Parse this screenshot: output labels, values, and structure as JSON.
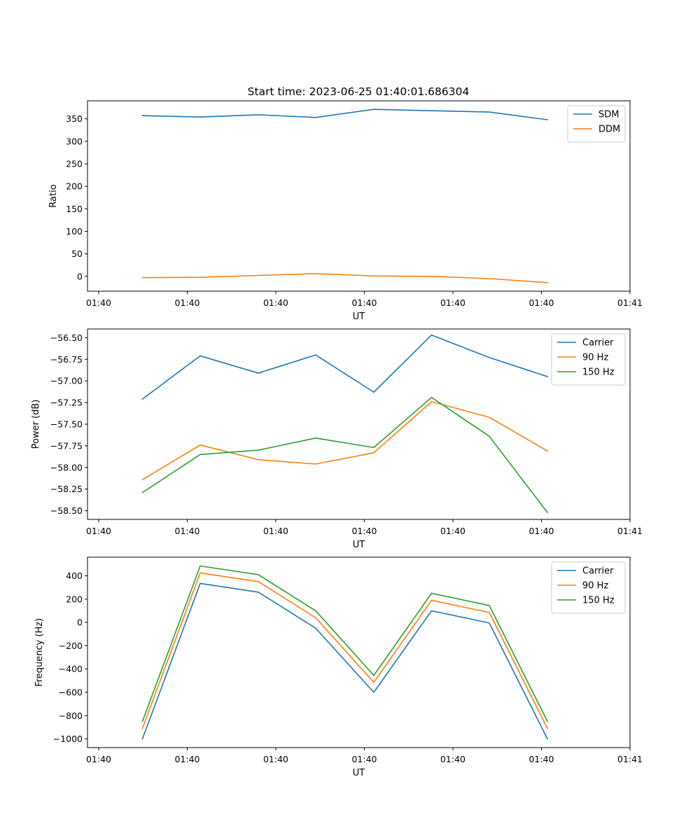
{
  "title": "Start time: 2023-06-25 01:40:01.686304",
  "colors": {
    "blue": "#1f77b4",
    "orange": "#ff7f0e",
    "green": "#2ca02c"
  },
  "chart_data": [
    {
      "type": "line",
      "xlabel": "UT",
      "ylabel": "Ratio",
      "x_tick_labels": [
        "01:40",
        "01:40",
        "01:40",
        "01:40",
        "01:40",
        "01:40",
        "01:40"
      ],
      "x_tick_end_label": "01:41",
      "ylim": [
        -33,
        390
      ],
      "yticks": [
        0,
        50,
        100,
        150,
        200,
        250,
        300,
        350
      ],
      "ytick_labels": [
        "0",
        "50",
        "100",
        "150",
        "200",
        "250",
        "300",
        "350"
      ],
      "legend_position": "upper right",
      "series": [
        {
          "name": "SDM",
          "color": "#1f77b4",
          "values": [
            357,
            354,
            359,
            353,
            371,
            368,
            365,
            348
          ]
        },
        {
          "name": "DDM",
          "color": "#ff7f0e",
          "values": [
            -3,
            -2,
            2,
            6,
            1,
            0,
            -5,
            -14
          ]
        }
      ]
    },
    {
      "type": "line",
      "xlabel": "UT",
      "ylabel": "Power (dB)",
      "x_tick_labels": [
        "01:40",
        "01:40",
        "01:40",
        "01:40",
        "01:40",
        "01:40",
        "01:40"
      ],
      "x_tick_end_label": "01:41",
      "ylim": [
        -58.6,
        -56.4
      ],
      "yticks": [
        -58.5,
        -58.25,
        -58.0,
        -57.75,
        -57.5,
        -57.25,
        -57.0,
        -56.75,
        -56.5
      ],
      "ytick_labels": [
        "−58.50",
        "−58.25",
        "−58.00",
        "−57.75",
        "−57.50",
        "−57.25",
        "−57.00",
        "−56.75",
        "−56.50"
      ],
      "legend_position": "upper right",
      "series": [
        {
          "name": "Carrier",
          "color": "#1f77b4",
          "values": [
            -57.21,
            -56.71,
            -56.91,
            -56.7,
            -57.13,
            -56.47,
            -56.73,
            -56.95
          ]
        },
        {
          "name": "90 Hz",
          "color": "#ff7f0e",
          "values": [
            -58.14,
            -57.74,
            -57.91,
            -57.96,
            -57.83,
            -57.24,
            -57.42,
            -57.81
          ]
        },
        {
          "name": "150 Hz",
          "color": "#2ca02c",
          "values": [
            -58.29,
            -57.85,
            -57.8,
            -57.66,
            -57.77,
            -57.19,
            -57.64,
            -58.52
          ]
        }
      ]
    },
    {
      "type": "line",
      "xlabel": "UT",
      "ylabel": "Frequency (Hz)",
      "x_tick_labels": [
        "01:40",
        "01:40",
        "01:40",
        "01:40",
        "01:40",
        "01:40",
        "01:40"
      ],
      "x_tick_end_label": "01:41",
      "ylim": [
        -1075,
        560
      ],
      "yticks": [
        -1000,
        -800,
        -600,
        -400,
        -200,
        0,
        200,
        400
      ],
      "ytick_labels": [
        "−1000",
        "−800",
        "−600",
        "−400",
        "−200",
        "0",
        "200",
        "400"
      ],
      "legend_position": "upper right",
      "series": [
        {
          "name": "Carrier",
          "color": "#1f77b4",
          "values": [
            -1000,
            335,
            260,
            -50,
            -600,
            100,
            -5,
            -1000
          ]
        },
        {
          "name": "90 Hz",
          "color": "#ff7f0e",
          "values": [
            -910,
            425,
            350,
            40,
            -515,
            190,
            85,
            -910
          ]
        },
        {
          "name": "150 Hz",
          "color": "#2ca02c",
          "values": [
            -850,
            485,
            410,
            100,
            -455,
            250,
            145,
            -850
          ]
        }
      ]
    }
  ]
}
